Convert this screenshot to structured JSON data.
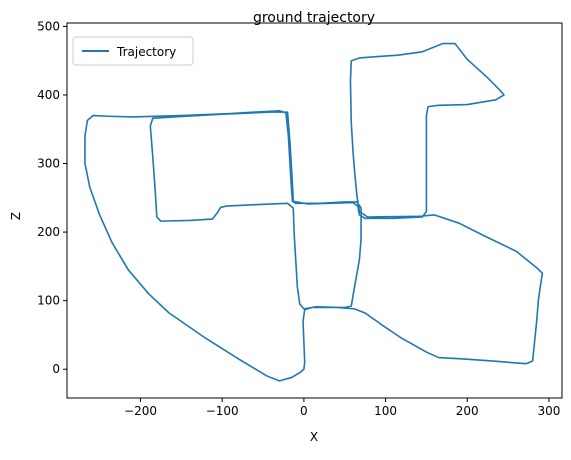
{
  "chart_data": {
    "type": "line",
    "title": "ground trajectory",
    "xlabel": "X",
    "ylabel": "Z",
    "xlim": [
      -290,
      316
    ],
    "ylim": [
      -42,
      505
    ],
    "xticks": [
      -200,
      -100,
      0,
      100,
      200,
      300
    ],
    "yticks": [
      0,
      100,
      200,
      300,
      400,
      500
    ],
    "grid": false,
    "legend": {
      "position": "top-left"
    },
    "colors": {
      "line": "#1f77b4",
      "axis": "#000000",
      "legend_border": "#cccccc"
    },
    "series": [
      {
        "name": "Trajectory",
        "points": [
          [
            0,
            0
          ],
          [
            -5,
            -5
          ],
          [
            -15,
            -12
          ],
          [
            -30,
            -17
          ],
          [
            -45,
            -10
          ],
          [
            -80,
            15
          ],
          [
            -120,
            45
          ],
          [
            -165,
            82
          ],
          [
            -190,
            110
          ],
          [
            -215,
            145
          ],
          [
            -235,
            185
          ],
          [
            -250,
            225
          ],
          [
            -262,
            265
          ],
          [
            -268,
            300
          ],
          [
            -268,
            340
          ],
          [
            -265,
            363
          ],
          [
            -258,
            370
          ],
          [
            -240,
            369
          ],
          [
            -210,
            368
          ],
          [
            -150,
            370
          ],
          [
            -90,
            373
          ],
          [
            -30,
            377
          ],
          [
            -22,
            374
          ],
          [
            -19,
            340
          ],
          [
            -17,
            300
          ],
          [
            -15,
            260
          ],
          [
            -14,
            245
          ],
          [
            -10,
            242
          ],
          [
            20,
            242
          ],
          [
            50,
            244
          ],
          [
            65,
            244
          ],
          [
            70,
            235
          ],
          [
            70,
            190
          ],
          [
            68,
            160
          ],
          [
            62,
            120
          ],
          [
            58,
            92
          ],
          [
            50,
            90
          ],
          [
            15,
            91
          ],
          [
            0,
            88
          ],
          [
            -5,
            95
          ],
          [
            -8,
            120
          ],
          [
            -10,
            160
          ],
          [
            -12,
            200
          ],
          [
            -13,
            235
          ],
          [
            -20,
            242
          ],
          [
            -60,
            240
          ],
          [
            -95,
            238
          ],
          [
            -102,
            236
          ],
          [
            -106,
            228
          ],
          [
            -112,
            219
          ],
          [
            -140,
            217
          ],
          [
            -175,
            216
          ],
          [
            -180,
            222
          ],
          [
            -182,
            260
          ],
          [
            -185,
            310
          ],
          [
            -188,
            355
          ],
          [
            -185,
            366
          ],
          [
            -160,
            368
          ],
          [
            -100,
            372
          ],
          [
            -40,
            375
          ],
          [
            -20,
            375
          ],
          [
            -17,
            330
          ],
          [
            -14,
            270
          ],
          [
            -13,
            245
          ],
          [
            5,
            241
          ],
          [
            60,
            243
          ],
          [
            66,
            238
          ],
          [
            68,
            225
          ],
          [
            75,
            220
          ],
          [
            110,
            220
          ],
          [
            145,
            222
          ],
          [
            150,
            230
          ],
          [
            150,
            280
          ],
          [
            150,
            370
          ],
          [
            152,
            383
          ],
          [
            165,
            385
          ],
          [
            200,
            386
          ],
          [
            235,
            393
          ],
          [
            245,
            400
          ],
          [
            240,
            407
          ],
          [
            225,
            425
          ],
          [
            200,
            452
          ],
          [
            185,
            475
          ],
          [
            170,
            475
          ],
          [
            145,
            463
          ],
          [
            115,
            458
          ],
          [
            90,
            456
          ],
          [
            68,
            454
          ],
          [
            58,
            450
          ],
          [
            57,
            420
          ],
          [
            58,
            360
          ],
          [
            60,
            320
          ],
          [
            62,
            290
          ],
          [
            65,
            252
          ],
          [
            68,
            230
          ],
          [
            78,
            222
          ],
          [
            140,
            223
          ],
          [
            160,
            225
          ],
          [
            190,
            213
          ],
          [
            220,
            195
          ],
          [
            260,
            172
          ],
          [
            285,
            148
          ],
          [
            292,
            140
          ],
          [
            290,
            125
          ],
          [
            287,
            100
          ],
          [
            285,
            70
          ],
          [
            282,
            35
          ],
          [
            280,
            12
          ],
          [
            272,
            8
          ],
          [
            230,
            12
          ],
          [
            195,
            15
          ],
          [
            165,
            17
          ],
          [
            150,
            25
          ],
          [
            120,
            45
          ],
          [
            95,
            65
          ],
          [
            75,
            82
          ],
          [
            62,
            88
          ],
          [
            40,
            90
          ],
          [
            10,
            90
          ],
          [
            1,
            87
          ],
          [
            -1,
            70
          ],
          [
            0,
            40
          ],
          [
            1,
            10
          ],
          [
            0,
            0
          ]
        ]
      }
    ]
  }
}
